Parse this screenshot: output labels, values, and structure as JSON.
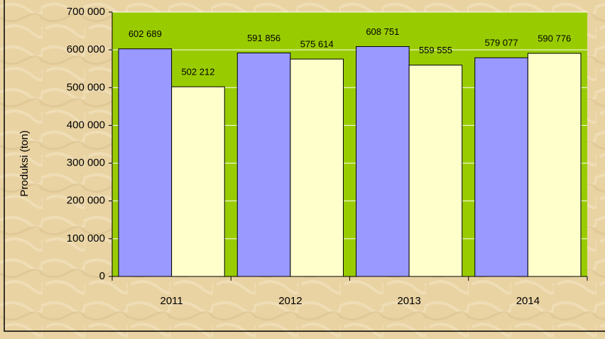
{
  "chart_data": {
    "type": "bar",
    "y_label": "Produksi (ton)",
    "categories": [
      "2011",
      "2012",
      "2013",
      "2014"
    ],
    "series": [
      {
        "color": "#9999ff",
        "values": [
          602689,
          591856,
          608751,
          579077
        ],
        "value_labels": [
          "602 689",
          "591 856",
          "608 751",
          "579 077"
        ]
      },
      {
        "color": "#ffffcc",
        "values": [
          502212,
          575614,
          559555,
          590776
        ],
        "value_labels": [
          "502 212",
          "575 614",
          "559 555",
          "590 776"
        ]
      }
    ],
    "ylim": [
      0,
      700000
    ],
    "yticks": [
      {
        "value": 0,
        "label": "0"
      },
      {
        "value": 100000,
        "label": "100 000"
      },
      {
        "value": 200000,
        "label": "200 000"
      },
      {
        "value": 300000,
        "label": "300 000"
      },
      {
        "value": 400000,
        "label": "400 000"
      },
      {
        "value": 500000,
        "label": "500 000"
      },
      {
        "value": 600000,
        "label": "600 000"
      },
      {
        "value": 700000,
        "label": "700 000"
      }
    ],
    "grid": true,
    "plot_background": "#99cc00"
  }
}
